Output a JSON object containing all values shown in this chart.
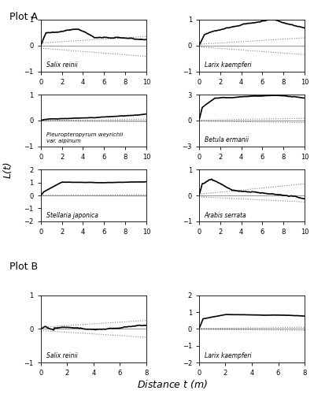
{
  "plot_A_title": "Plot A",
  "plot_B_title": "Plot B",
  "xlabel": "Distance $t$ (m)",
  "ylabel": "L(t)",
  "panels": [
    {
      "label": "Salix reinii",
      "xlim": [
        0,
        10
      ],
      "ylim": [
        -1,
        1
      ],
      "yticks": [
        -1,
        0,
        1
      ],
      "xticks": [
        0,
        2,
        4,
        6,
        8,
        10
      ],
      "curve_type": "salix_reinii_A"
    },
    {
      "label": "Larix kaempferi",
      "xlim": [
        0,
        10
      ],
      "ylim": [
        -1,
        1
      ],
      "yticks": [
        -1,
        0,
        1
      ],
      "xticks": [
        0,
        2,
        4,
        6,
        8,
        10
      ],
      "curve_type": "larix_A"
    },
    {
      "label": "Pleuropteropyrum weyrichii\nvar. alpinum",
      "xlim": [
        0,
        10
      ],
      "ylim": [
        -1,
        1
      ],
      "yticks": [
        -1,
        0,
        1
      ],
      "xticks": [
        0,
        2,
        4,
        6,
        8,
        10
      ],
      "curve_type": "pleuropt"
    },
    {
      "label": "Betula ermanii",
      "xlim": [
        0,
        10
      ],
      "ylim": [
        -3,
        3
      ],
      "yticks": [
        -3,
        0,
        3
      ],
      "xticks": [
        0,
        2,
        4,
        6,
        8,
        10
      ],
      "curve_type": "betula"
    },
    {
      "label": "Stellaria japonica",
      "xlim": [
        0,
        10
      ],
      "ylim": [
        -2,
        2
      ],
      "yticks": [
        -2,
        -1,
        0,
        1,
        2
      ],
      "xticks": [
        0,
        2,
        4,
        6,
        8,
        10
      ],
      "curve_type": "stellaria"
    },
    {
      "label": "Arabis serrata",
      "xlim": [
        0,
        10
      ],
      "ylim": [
        -1,
        1
      ],
      "yticks": [
        -1,
        0,
        1
      ],
      "xticks": [
        0,
        2,
        4,
        6,
        8,
        10
      ],
      "curve_type": "arabis"
    },
    {
      "label": "Salix reinii",
      "xlim": [
        0,
        8
      ],
      "ylim": [
        -1,
        1
      ],
      "yticks": [
        -1,
        0,
        1
      ],
      "xticks": [
        0,
        2,
        4,
        6,
        8
      ],
      "curve_type": "salix_reinii_B"
    },
    {
      "label": "Larix kaempferi",
      "xlim": [
        0,
        8
      ],
      "ylim": [
        -2,
        2
      ],
      "yticks": [
        -2,
        -1,
        0,
        1,
        2
      ],
      "xticks": [
        0,
        2,
        4,
        6,
        8
      ],
      "curve_type": "larix_B"
    }
  ],
  "line_color": "black",
  "ci_color": "gray",
  "zero_line_color": "gray",
  "background_color": "white"
}
